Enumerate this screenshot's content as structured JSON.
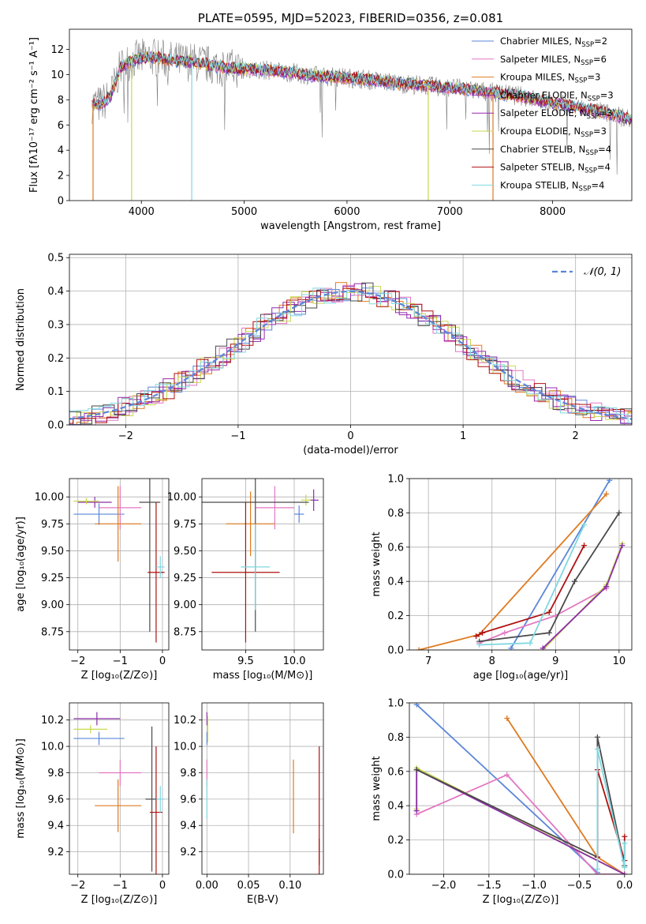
{
  "colors": {
    "chabrier_miles": "#5b86d9",
    "salpeter_miles": "#e377c2",
    "kroupa_miles": "#e07a20",
    "chabrier_elodie": "#8b2fa8",
    "salpeter_elodie": "#9c27b0",
    "kroupa_elodie": "#c7d94e",
    "chabrier_stelib": "#4a4a4a",
    "salpeter_stelib": "#b01010",
    "kroupa_stelib": "#7fd8e0",
    "data_spectrum": "#808080",
    "normal_curve": "#5b86d9",
    "grid": "#b0b0b0"
  },
  "chart_data": [
    {
      "id": "spectrum",
      "type": "line",
      "title": "PLATE=0595, MJD=52023, FIBERID=0356, z=0.081",
      "xlabel": "wavelength [Angstrom, rest frame]",
      "ylabel": "Flux [fλ10⁻¹⁷ erg cm⁻² s⁻¹ A⁻¹]",
      "xlim": [
        3300,
        8770
      ],
      "ylim": [
        0,
        13.6
      ],
      "xticks": [
        "4000",
        "5000",
        "6000",
        "7000",
        "8000"
      ],
      "yticks": [
        "0",
        "2",
        "4",
        "6",
        "8",
        "10",
        "12"
      ],
      "grid": false,
      "legend_position": "right",
      "legend": [
        {
          "label": "Chabrier MILES, N",
          "sub": "SSP",
          "tail": "=2",
          "color_key": "chabrier_miles"
        },
        {
          "label": "Salpeter MILES, N",
          "sub": "SSP",
          "tail": "=6",
          "color_key": "salpeter_miles"
        },
        {
          "label": "Kroupa MILES, N",
          "sub": "SSP",
          "tail": "=3",
          "color_key": "kroupa_miles"
        },
        {
          "label": "Chabrier ELODIE, N",
          "sub": "SSP",
          "tail": "=3",
          "color_key": "chabrier_elodie"
        },
        {
          "label": "Salpeter ELODIE, N",
          "sub": "SSP",
          "tail": "=3",
          "color_key": "salpeter_elodie"
        },
        {
          "label": "Kroupa ELODIE, N",
          "sub": "SSP",
          "tail": "=3",
          "color_key": "kroupa_elodie"
        },
        {
          "label": "Chabrier STELIB, N",
          "sub": "SSP",
          "tail": "=4",
          "color_key": "chabrier_stelib"
        },
        {
          "label": "Salpeter STELIB, N",
          "sub": "SSP",
          "tail": "=4",
          "color_key": "salpeter_stelib"
        },
        {
          "label": "Kroupa STELIB, N",
          "sub": "SSP",
          "tail": "=4",
          "color_key": "kroupa_stelib"
        }
      ],
      "continuum": {
        "x": [
          3520,
          3600,
          3700,
          3800,
          3900,
          4000,
          4100,
          4300,
          4500,
          4700,
          4900,
          5100,
          5300,
          5500,
          5700,
          5900,
          6100,
          6300,
          6500,
          6700,
          6900,
          7100,
          7300,
          7500,
          7700,
          7900,
          8100,
          8300,
          8500,
          8770
        ],
        "y": [
          7.7,
          7.6,
          8.3,
          10.6,
          11.1,
          11.3,
          11.4,
          11.1,
          11.0,
          10.7,
          10.5,
          10.4,
          10.3,
          10.1,
          9.9,
          9.8,
          9.7,
          9.5,
          9.3,
          9.2,
          9.0,
          8.9,
          8.7,
          8.5,
          8.3,
          7.9,
          7.6,
          7.3,
          7.0,
          6.4
        ]
      },
      "model_dips": [
        {
          "x": 3530,
          "depth_to": 0,
          "color_key": "kroupa_miles"
        },
        {
          "x": 3905,
          "depth_to": 0,
          "color_key": "kroupa_elodie"
        },
        {
          "x": 4490,
          "depth_to": 0,
          "color_key": "kroupa_stelib"
        },
        {
          "x": 6790,
          "depth_to": 0,
          "color_key": "kroupa_elodie"
        },
        {
          "x": 7420,
          "depth_to": 0,
          "color_key": "kroupa_miles"
        }
      ]
    },
    {
      "id": "residuals",
      "type": "line",
      "xlabel": "(data-model)/error",
      "ylabel": "Normed distribution",
      "xlim": [
        -2.5,
        2.5
      ],
      "ylim": [
        0,
        0.51
      ],
      "xticks": [
        "−2",
        "−1",
        "0",
        "1",
        "2"
      ],
      "yticks": [
        "0.0",
        "0.1",
        "0.2",
        "0.3",
        "0.4",
        "0.5"
      ],
      "grid": true,
      "legend_position": "top-right",
      "legend_label": "𝒩(0, 1)",
      "normal": {
        "mean": 0,
        "sigma": 1
      }
    },
    {
      "id": "age_vs_z",
      "type": "scatter",
      "xlabel": "Z [log₁₀(Z/Z⊙)]",
      "ylabel": "age  [log₁₀(age/yr)]",
      "xlim": [
        -2.2,
        0.15
      ],
      "ylim": [
        8.58,
        10.17
      ],
      "xticks": [
        "−2",
        "−1",
        "0"
      ],
      "yticks": [
        "8.75",
        "9.00",
        "9.25",
        "9.50",
        "9.75",
        "10.00"
      ],
      "grid": true,
      "points": [
        {
          "color_key": "chabrier_miles",
          "x": -1.5,
          "xerr": 0.6,
          "y": 9.84,
          "yerr": 0.1
        },
        {
          "color_key": "salpeter_miles",
          "x": -1.0,
          "xerr": 0.5,
          "y": 9.9,
          "yerr": 0.2
        },
        {
          "color_key": "kroupa_miles",
          "x": -1.05,
          "xerr": 0.55,
          "y": 9.75,
          "yerr": 0.35
        },
        {
          "color_key": "chabrier_elodie",
          "x": -1.6,
          "xerr": 0.4,
          "y": 9.95,
          "yerr": 0.05
        },
        {
          "color_key": "kroupa_elodie",
          "x": -1.8,
          "xerr": 0.3,
          "y": 9.96,
          "yerr": 0.03
        },
        {
          "color_key": "chabrier_stelib",
          "x": -0.3,
          "xerr": 0.25,
          "y": 9.95,
          "yerr": 1.2
        },
        {
          "color_key": "salpeter_stelib",
          "x": -0.15,
          "xerr": 0.2,
          "y": 9.3,
          "yerr": 0.65
        },
        {
          "color_key": "kroupa_stelib",
          "x": -0.05,
          "xerr": 0.1,
          "y": 9.35,
          "yerr": 0.1
        }
      ]
    },
    {
      "id": "age_vs_mass",
      "type": "scatter",
      "xlabel": "mass [log₁₀(M/M⊙)]",
      "xlim": [
        9.05,
        10.3
      ],
      "ylim": [
        8.58,
        10.17
      ],
      "xticks": [
        "9.5",
        "10.0"
      ],
      "yticks": [
        "8.75",
        "9.00",
        "9.25",
        "9.50",
        "9.75",
        "10.00"
      ],
      "grid": true,
      "points": [
        {
          "color_key": "chabrier_miles",
          "x": 10.05,
          "xerr": 0.05,
          "y": 9.84,
          "yerr": 0.08
        },
        {
          "color_key": "salpeter_miles",
          "x": 9.8,
          "xerr": 0.2,
          "y": 9.9,
          "yerr": 0.2
        },
        {
          "color_key": "kroupa_miles",
          "x": 9.55,
          "xerr": 0.25,
          "y": 9.75,
          "yerr": 0.3
        },
        {
          "color_key": "chabrier_elodie",
          "x": 10.2,
          "xerr": 0.05,
          "y": 9.97,
          "yerr": 0.1
        },
        {
          "color_key": "kroupa_elodie",
          "x": 10.12,
          "xerr": 0.05,
          "y": 9.97,
          "yerr": 0.05
        },
        {
          "color_key": "chabrier_stelib",
          "x": 9.6,
          "xerr": 0.55,
          "y": 9.95,
          "yerr": 1.2
        },
        {
          "color_key": "salpeter_stelib",
          "x": 9.5,
          "xerr": 0.35,
          "y": 9.3,
          "yerr": 0.65
        },
        {
          "color_key": "kroupa_stelib",
          "x": 9.6,
          "xerr": 0.15,
          "y": 9.35,
          "yerr": 0.4
        }
      ]
    },
    {
      "id": "weight_vs_age",
      "type": "line",
      "xlabel": "age  [log₁₀(age/yr)]",
      "ylabel": "mass weight",
      "xlim": [
        6.7,
        10.2
      ],
      "ylim": [
        0,
        1.0
      ],
      "xticks": [
        "7",
        "8",
        "9",
        "10"
      ],
      "yticks": [
        "0.0",
        "0.2",
        "0.4",
        "0.6",
        "0.8",
        "1.0"
      ],
      "grid": true,
      "series": [
        {
          "color_key": "chabrier_miles",
          "x": [
            8.3,
            9.85
          ],
          "y": [
            0.01,
            0.99
          ]
        },
        {
          "color_key": "salpeter_miles",
          "x": [
            7.8,
            8.2,
            9.0,
            9.8
          ],
          "y": [
            0.04,
            0.1,
            0.2,
            0.36
          ]
        },
        {
          "color_key": "kroupa_miles",
          "x": [
            6.85,
            7.8,
            9.8
          ],
          "y": [
            0.0,
            0.09,
            0.91
          ]
        },
        {
          "color_key": "kroupa_elodie",
          "x": [
            8.8,
            9.8,
            10.05
          ],
          "y": [
            0.0,
            0.38,
            0.62
          ]
        },
        {
          "color_key": "chabrier_elodie",
          "x": [
            8.8,
            9.8,
            10.05
          ],
          "y": [
            0.01,
            0.37,
            0.61
          ]
        },
        {
          "color_key": "chabrier_stelib",
          "x": [
            7.8,
            8.9,
            9.3,
            10.0
          ],
          "y": [
            0.05,
            0.1,
            0.4,
            0.8
          ]
        },
        {
          "color_key": "salpeter_stelib",
          "x": [
            7.75,
            7.85,
            8.9,
            9.45
          ],
          "y": [
            0.08,
            0.1,
            0.22,
            0.61
          ]
        },
        {
          "color_key": "kroupa_stelib",
          "x": [
            7.8,
            8.6,
            9.45
          ],
          "y": [
            0.03,
            0.04,
            0.73
          ]
        }
      ]
    },
    {
      "id": "mass_vs_z",
      "type": "scatter",
      "xlabel": "Z [log₁₀(Z/Z⊙)]",
      "ylabel": "mass [log₁₀(M/M⊙)]",
      "xlim": [
        -2.2,
        0.15
      ],
      "ylim": [
        9.03,
        10.33
      ],
      "xticks": [
        "−2",
        "−1",
        "0"
      ],
      "yticks": [
        "9.2",
        "9.4",
        "9.6",
        "9.8",
        "10.0",
        "10.2"
      ],
      "grid": true,
      "points": [
        {
          "color_key": "chabrier_miles",
          "x": -1.5,
          "xerr": 0.6,
          "y": 10.06,
          "yerr": 0.05
        },
        {
          "color_key": "salpeter_miles",
          "x": -1.0,
          "xerr": 0.5,
          "y": 9.8,
          "yerr": 0.1
        },
        {
          "color_key": "kroupa_miles",
          "x": -1.05,
          "xerr": 0.55,
          "y": 9.55,
          "yerr": 0.2
        },
        {
          "color_key": "chabrier_elodie",
          "x": -1.55,
          "xerr": 0.55,
          "y": 10.21,
          "yerr": 0.05
        },
        {
          "color_key": "kroupa_elodie",
          "x": -1.7,
          "xerr": 0.4,
          "y": 10.13,
          "yerr": 0.03
        },
        {
          "color_key": "chabrier_stelib",
          "x": -0.25,
          "xerr": 0.15,
          "y": 9.6,
          "yerr": 0.55
        },
        {
          "color_key": "salpeter_stelib",
          "x": -0.15,
          "xerr": 0.15,
          "y": 9.5,
          "yerr": 0.5
        },
        {
          "color_key": "kroupa_stelib",
          "x": -0.05,
          "xerr": 0.1,
          "y": 9.6,
          "yerr": 0.1
        }
      ]
    },
    {
      "id": "mass_vs_ebv",
      "type": "scatter",
      "xlabel": "E(B-V)",
      "xlim": [
        -0.006,
        0.14
      ],
      "ylim": [
        9.03,
        10.33
      ],
      "xticks": [
        "0.00",
        "0.05",
        "0.10"
      ],
      "yticks": [
        "9.2",
        "9.4",
        "9.6",
        "9.8",
        "10.0",
        "10.2"
      ],
      "grid": true,
      "points": [
        {
          "color_key": "chabrier_miles",
          "x": 0.0,
          "xerr": 0.0,
          "y": 10.06,
          "yerr": 0.05
        },
        {
          "color_key": "salpeter_miles",
          "x": 0.0,
          "xerr": 0.0,
          "y": 9.8,
          "yerr": 0.1
        },
        {
          "color_key": "kroupa_miles",
          "x": 0.104,
          "xerr": 0.0,
          "y": 9.62,
          "yerr": 0.28
        },
        {
          "color_key": "chabrier_elodie",
          "x": 0.0,
          "xerr": 0.0,
          "y": 10.21,
          "yerr": 0.05
        },
        {
          "color_key": "kroupa_elodie",
          "x": 0.001,
          "xerr": 0.0,
          "y": 10.13,
          "yerr": 0.1
        },
        {
          "color_key": "chabrier_stelib",
          "x": 0.135,
          "xerr": 0.0,
          "y": 9.2,
          "yerr": 0.1
        },
        {
          "color_key": "salpeter_stelib",
          "x": 0.135,
          "xerr": 0.0,
          "y": 9.5,
          "yerr": 0.5
        },
        {
          "color_key": "kroupa_stelib",
          "x": 0.0,
          "xerr": 0.0,
          "y": 9.6,
          "yerr": 0.15
        }
      ]
    },
    {
      "id": "weight_vs_z",
      "type": "line",
      "xlabel": "Z [log₁₀(Z/Z⊙)]",
      "ylabel": "mass weight",
      "xlim": [
        -2.38,
        0.08
      ],
      "ylim": [
        0,
        1.0
      ],
      "xticks": [
        "−2.0",
        "−1.5",
        "−1.0",
        "−0.5",
        "0.0"
      ],
      "yticks": [
        "0.0",
        "0.2",
        "0.4",
        "0.6",
        "0.8",
        "1.0"
      ],
      "grid": true,
      "series": [
        {
          "color_key": "chabrier_miles",
          "x": [
            -2.3,
            -0.3
          ],
          "y": [
            0.99,
            0.01
          ]
        },
        {
          "color_key": "salpeter_miles",
          "x": [
            -2.3,
            -1.3,
            -0.3,
            0.0
          ],
          "y": [
            0.35,
            0.58,
            0.0,
            0.0
          ]
        },
        {
          "color_key": "kroupa_miles",
          "x": [
            -1.3,
            -0.3,
            0.0
          ],
          "y": [
            0.91,
            0.1,
            0.0
          ]
        },
        {
          "color_key": "kroupa_elodie",
          "x": [
            -2.3,
            -2.3,
            0.0
          ],
          "y": [
            0.38,
            0.62,
            0.0
          ]
        },
        {
          "color_key": "chabrier_elodie",
          "x": [
            -2.3,
            -2.3,
            0.0
          ],
          "y": [
            0.37,
            0.61,
            0.0
          ]
        },
        {
          "color_key": "chabrier_stelib",
          "x": [
            -2.3,
            -0.3,
            -0.3,
            0.0
          ],
          "y": [
            0.61,
            0.1,
            0.8,
            0.05
          ]
        },
        {
          "color_key": "salpeter_stelib",
          "x": [
            -0.3,
            -0.3,
            0.0,
            0.0
          ],
          "y": [
            0.1,
            0.61,
            0.08,
            0.22
          ]
        },
        {
          "color_key": "kroupa_stelib",
          "x": [
            -0.3,
            -0.3,
            0.0,
            0.0
          ],
          "y": [
            0.03,
            0.73,
            0.04,
            0.18
          ]
        }
      ]
    }
  ]
}
